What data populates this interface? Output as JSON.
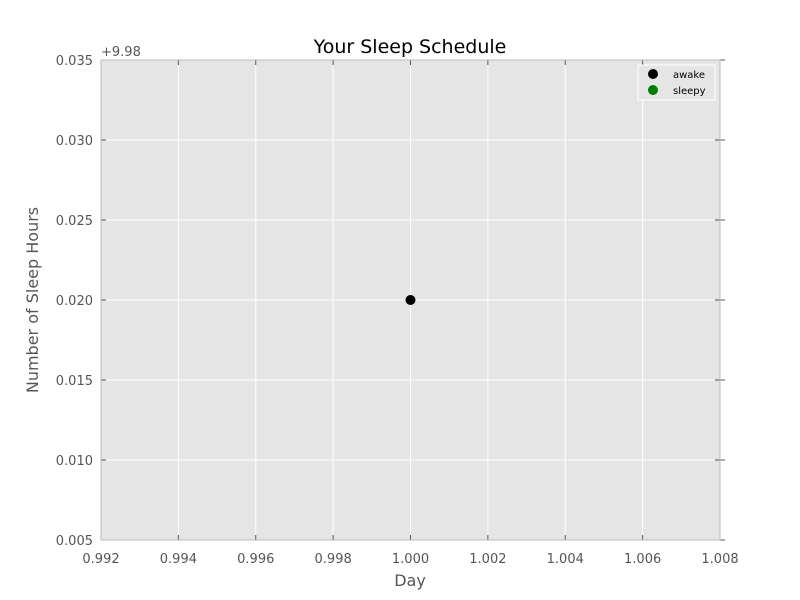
{
  "chart_data": {
    "type": "scatter",
    "title": "Your Sleep Schedule",
    "xlabel": "Day",
    "ylabel": "Number of Sleep Hours",
    "y_offset_label": "+9.98",
    "xlim": [
      0.992,
      1.008
    ],
    "ylim": [
      0.005,
      0.035
    ],
    "x_ticks": [
      "0.992",
      "0.994",
      "0.996",
      "0.998",
      "1.000",
      "1.002",
      "1.004",
      "1.006",
      "1.008"
    ],
    "y_ticks": [
      "0.005",
      "0.010",
      "0.015",
      "0.020",
      "0.025",
      "0.030",
      "0.035"
    ],
    "grid": true,
    "legend_position": "top-right",
    "series": [
      {
        "name": "awake",
        "color": "#000000",
        "points": [
          {
            "x": 1.0,
            "y": 0.02
          }
        ]
      },
      {
        "name": "sleepy",
        "color": "#008000",
        "points": []
      }
    ]
  }
}
